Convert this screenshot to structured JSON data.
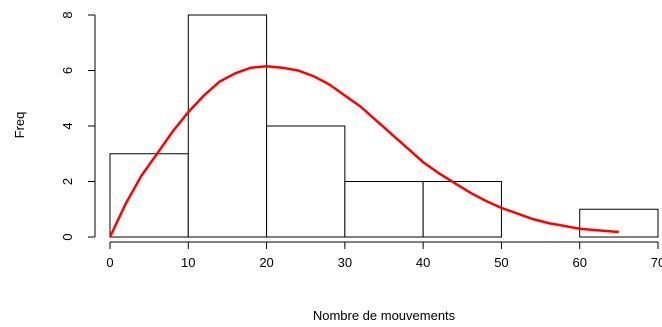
{
  "chart_data": {
    "type": "histogram",
    "xlabel": "Nombre de mouvements",
    "ylabel": "Freq",
    "xlim": [
      0,
      70
    ],
    "ylim": [
      0,
      8
    ],
    "x_ticks": [
      0,
      10,
      20,
      30,
      40,
      50,
      60,
      70
    ],
    "y_ticks": [
      0,
      2,
      4,
      6,
      8
    ],
    "grid": false,
    "bins": [
      {
        "start": 0,
        "end": 10,
        "count": 3
      },
      {
        "start": 10,
        "end": 20,
        "count": 8
      },
      {
        "start": 20,
        "end": 30,
        "count": 4
      },
      {
        "start": 30,
        "end": 40,
        "count": 2
      },
      {
        "start": 40,
        "end": 50,
        "count": 2
      },
      {
        "start": 50,
        "end": 60,
        "count": 0
      },
      {
        "start": 60,
        "end": 70,
        "count": 1
      }
    ],
    "curve": {
      "color": "#ff0000",
      "points": [
        [
          0,
          0.0
        ],
        [
          2,
          1.2
        ],
        [
          4,
          2.2
        ],
        [
          6,
          3.0
        ],
        [
          8,
          3.8
        ],
        [
          10,
          4.5
        ],
        [
          12,
          5.1
        ],
        [
          14,
          5.6
        ],
        [
          16,
          5.9
        ],
        [
          18,
          6.1
        ],
        [
          20,
          6.15
        ],
        [
          22,
          6.1
        ],
        [
          24,
          6.0
        ],
        [
          26,
          5.8
        ],
        [
          28,
          5.5
        ],
        [
          30,
          5.1
        ],
        [
          32,
          4.7
        ],
        [
          34,
          4.2
        ],
        [
          36,
          3.7
        ],
        [
          38,
          3.2
        ],
        [
          40,
          2.7
        ],
        [
          42,
          2.3
        ],
        [
          44,
          1.95
        ],
        [
          46,
          1.6
        ],
        [
          48,
          1.3
        ],
        [
          50,
          1.05
        ],
        [
          52,
          0.85
        ],
        [
          54,
          0.65
        ],
        [
          56,
          0.5
        ],
        [
          58,
          0.4
        ],
        [
          60,
          0.3
        ],
        [
          62,
          0.25
        ],
        [
          64,
          0.2
        ],
        [
          65,
          0.18
        ]
      ]
    }
  }
}
